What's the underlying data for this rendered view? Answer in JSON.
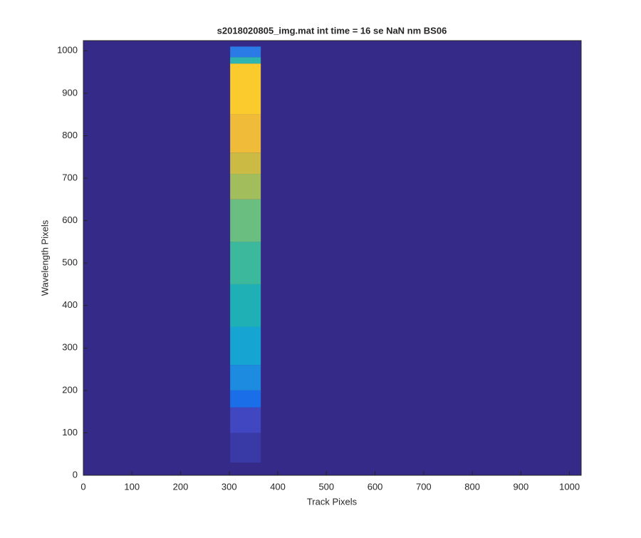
{
  "chart_data": {
    "type": "image",
    "title": "s2018020805_img.mat int time = 16 se  NaN nm BS06",
    "xlabel": "Track Pixels",
    "ylabel": "Wavelength Pixels",
    "xlim": [
      0,
      1024
    ],
    "ylim": [
      0,
      1024
    ],
    "xticks": [
      0,
      100,
      200,
      300,
      400,
      500,
      600,
      700,
      800,
      900,
      1000
    ],
    "yticks": [
      0,
      100,
      200,
      300,
      400,
      500,
      600,
      700,
      800,
      900,
      1000
    ],
    "background": "#352a87",
    "band": {
      "x": [
        302,
        365
      ],
      "yedges": [
        30,
        100,
        160,
        200,
        260,
        350,
        450,
        550,
        650,
        710,
        760,
        850,
        970,
        985,
        1010
      ],
      "colors": [
        "#3a3aa6",
        "#4147c0",
        "#1a6fe8",
        "#1d8be0",
        "#16a4d2",
        "#1eb0b4",
        "#3cb99c",
        "#6abf80",
        "#a2bd5c",
        "#cbbb44",
        "#f0bb38",
        "#fbcb2e",
        "#2fb5b0",
        "#2a7be6"
      ]
    }
  }
}
